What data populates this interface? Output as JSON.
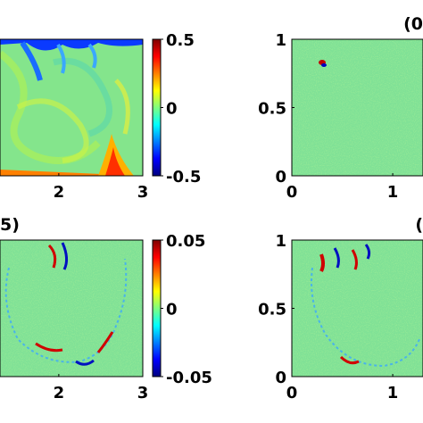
{
  "colors": {
    "jet": [
      "#00007f",
      "#0000ff",
      "#007fff",
      "#00ffff",
      "#7fff7f",
      "#ffff00",
      "#ff7f00",
      "#ff0000",
      "#7f0000"
    ],
    "field_background": "#7fe0a0",
    "axis": "#000000"
  },
  "chart_data": [
    {
      "type": "heatmap",
      "panel": "top-left",
      "panel_label": "",
      "title": "",
      "xlabel": "",
      "ylabel": "",
      "x_ticks": [
        "2",
        "3"
      ],
      "x_tick_values": [
        2,
        3
      ],
      "xlim": [
        1.3,
        3
      ],
      "y_ticks": [],
      "colorbar": {
        "ticks": [
          "0.5",
          "0",
          "-0.5"
        ],
        "tick_values": [
          0.5,
          0,
          -0.5
        ],
        "range": [
          -0.5,
          0.5
        ]
      }
    },
    {
      "type": "heatmap",
      "panel": "top-right",
      "panel_label": "(0",
      "title": "",
      "xlabel": "",
      "ylabel": "",
      "x_ticks": [
        "0",
        "1"
      ],
      "x_tick_values": [
        0,
        1
      ],
      "xlim": [
        0,
        1.3
      ],
      "y_ticks": [
        "1",
        "0.5",
        "0"
      ],
      "y_tick_values": [
        1,
        0.5,
        0
      ],
      "ylim": [
        0,
        1
      ]
    },
    {
      "type": "heatmap",
      "panel": "bottom-left",
      "panel_label": "5)",
      "title": "",
      "xlabel": "",
      "ylabel": "",
      "x_ticks": [
        "2",
        "3"
      ],
      "x_tick_values": [
        2,
        3
      ],
      "xlim": [
        1.3,
        3
      ],
      "y_ticks": [],
      "colorbar": {
        "ticks": [
          "0.05",
          "0",
          "-0.05"
        ],
        "tick_values": [
          0.05,
          0,
          -0.05
        ],
        "range": [
          -0.05,
          0.05
        ]
      }
    },
    {
      "type": "heatmap",
      "panel": "bottom-right",
      "panel_label": "(",
      "title": "",
      "xlabel": "",
      "ylabel": "",
      "x_ticks": [
        "0",
        "1"
      ],
      "x_tick_values": [
        0,
        1
      ],
      "xlim": [
        0,
        1.3
      ],
      "y_ticks": [
        "1",
        "0.5",
        "0"
      ],
      "y_tick_values": [
        1,
        0.5,
        0
      ],
      "ylim": [
        0,
        1
      ]
    }
  ]
}
